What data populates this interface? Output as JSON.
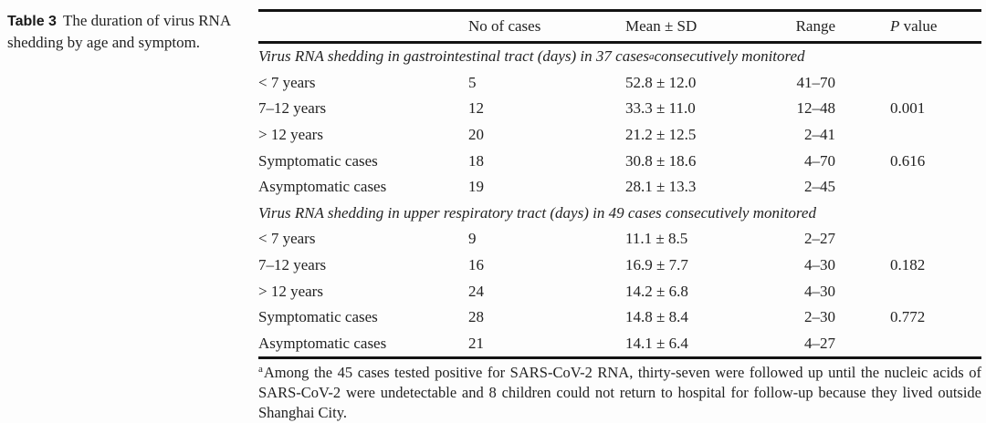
{
  "caption": {
    "label": "Table 3",
    "text": "The duration of virus RNA shedding by age and symptom."
  },
  "table": {
    "headers": {
      "no_of_cases": "No of cases",
      "mean_sd": "Mean ± SD",
      "range": "Range",
      "p_italic": "P",
      "p_rest": " value"
    },
    "sections": [
      {
        "title_pre": "Virus RNA shedding in gastrointestinal tract (days) in 37 cases",
        "title_sup": "a",
        "title_post": " consecutively monitored",
        "rows": [
          {
            "label": "< 7 years",
            "cases": "5",
            "mean_sd": "52.8 ± 12.0",
            "range": "41–70",
            "p": ""
          },
          {
            "label": "7–12 years",
            "cases": "12",
            "mean_sd": "33.3 ± 11.0",
            "range": "12–48",
            "p": "0.001"
          },
          {
            "label": "> 12 years",
            "cases": "20",
            "mean_sd": "21.2 ± 12.5",
            "range": "2–41",
            "p": ""
          },
          {
            "label": "Symptomatic cases",
            "cases": "18",
            "mean_sd": "30.8 ± 18.6",
            "range": "4–70",
            "p": "0.616"
          },
          {
            "label": "Asymptomatic cases",
            "cases": "19",
            "mean_sd": "28.1 ± 13.3",
            "range": "2–45",
            "p": ""
          }
        ]
      },
      {
        "title_pre": "Virus RNA shedding in upper respiratory tract (days) in 49 cases consecutively monitored",
        "title_sup": "",
        "title_post": "",
        "rows": [
          {
            "label": "< 7 years",
            "cases": "9",
            "mean_sd": "11.1 ± 8.5",
            "range": "2–27",
            "p": ""
          },
          {
            "label": "7–12 years",
            "cases": "16",
            "mean_sd": "16.9 ± 7.7",
            "range": "4–30",
            "p": "0.182"
          },
          {
            "label": "> 12 years",
            "cases": "24",
            "mean_sd": "14.2 ± 6.8",
            "range": "4–30",
            "p": ""
          },
          {
            "label": "Symptomatic cases",
            "cases": "28",
            "mean_sd": "14.8 ± 8.4",
            "range": "2–30",
            "p": "0.772"
          },
          {
            "label": "Asymptomatic cases",
            "cases": "21",
            "mean_sd": "14.1 ± 6.4",
            "range": "4–27",
            "p": ""
          }
        ]
      }
    ],
    "footnote": {
      "sup": "a",
      "text": "Among the 45 cases tested positive for SARS-CoV-2 RNA, thirty-seven were followed up until the nucleic acids of SARS-CoV-2 were undetectable and 8 children could not return to hospital for follow-up because they lived outside Shanghai City."
    }
  }
}
